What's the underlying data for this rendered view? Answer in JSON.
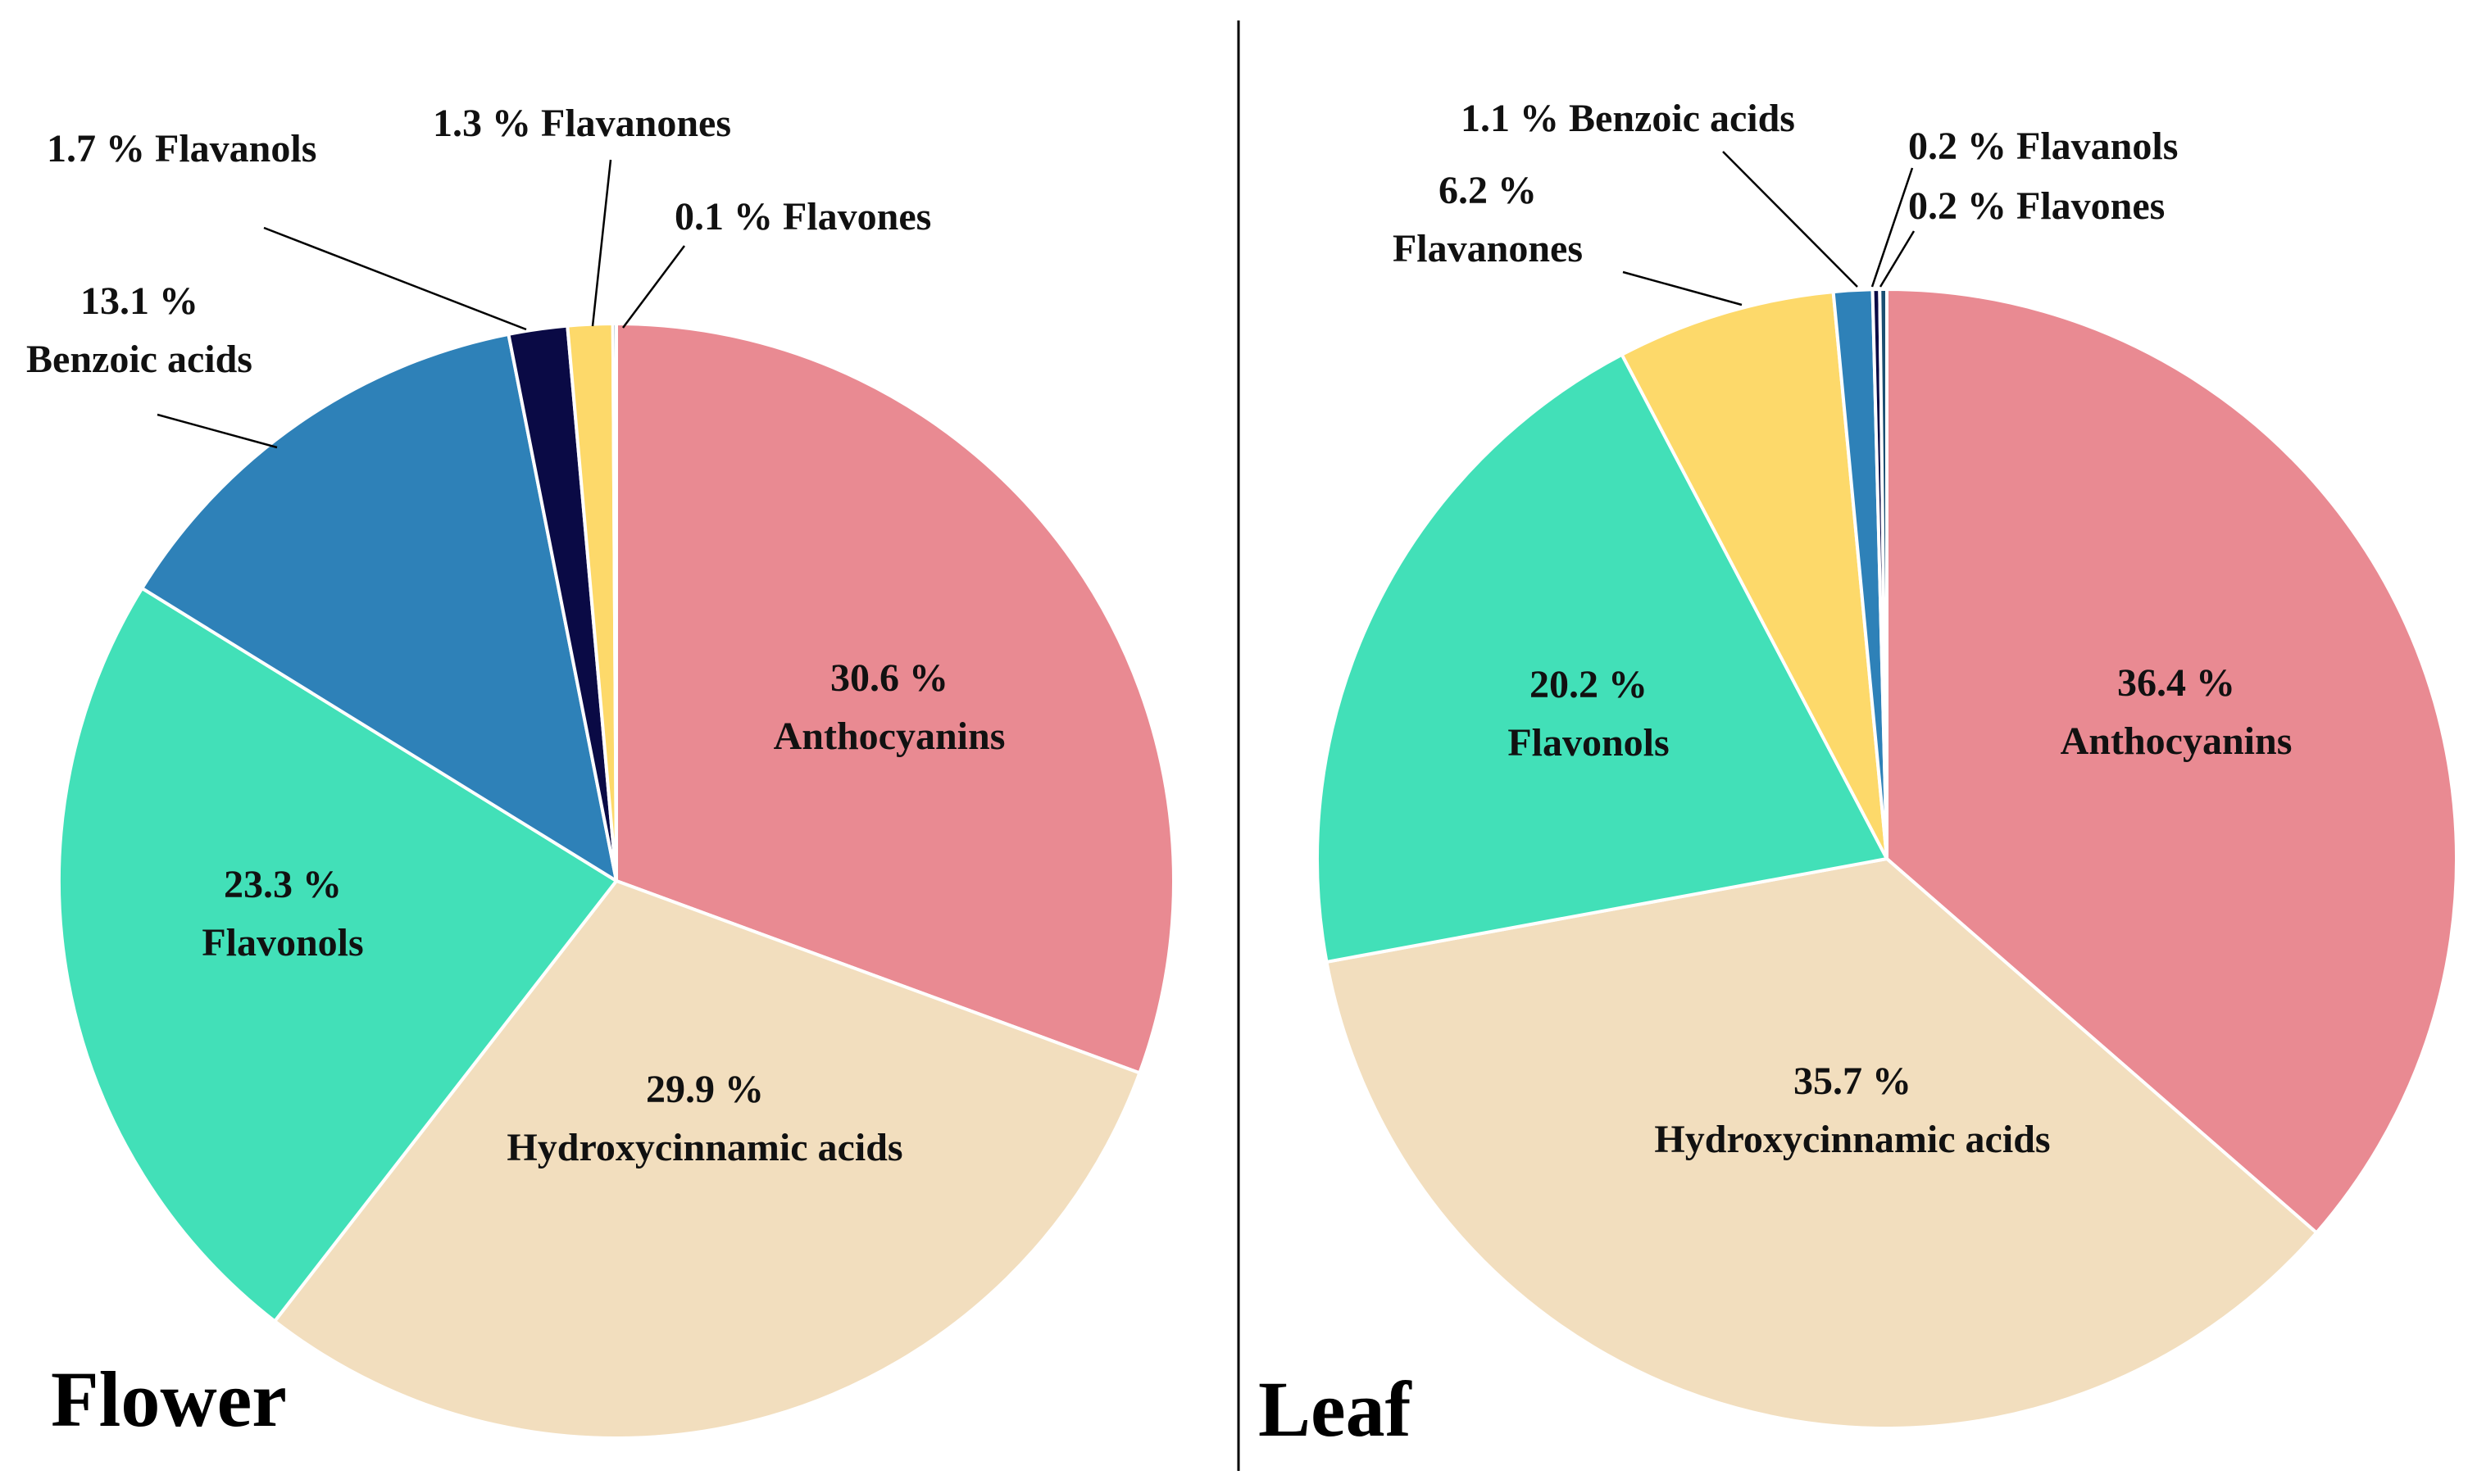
{
  "chart_data": [
    {
      "type": "pie",
      "title": "Flower",
      "slices": [
        {
          "label": "Anthocyanins",
          "value": 30.6,
          "value_text": "30.6 %",
          "color": "#E98A92"
        },
        {
          "label": "Hydroxycinnamic acids",
          "value": 29.9,
          "value_text": "29.9 %",
          "color": "#F2DEBE"
        },
        {
          "label": "Flavonols",
          "value": 23.3,
          "value_text": "23.3 %",
          "color": "#42E0B8"
        },
        {
          "label": "Benzoic acids",
          "value": 13.1,
          "value_text": "13.1 %",
          "color": "#2E81B8"
        },
        {
          "label": "Flavanols",
          "value": 1.7,
          "value_text": "1.7 %",
          "color": "#0A0A45"
        },
        {
          "label": "Flavanones",
          "value": 1.3,
          "value_text": "1.3 %",
          "color": "#FDD96A"
        },
        {
          "label": "Flavones",
          "value": 0.1,
          "value_text": "0.1 %",
          "color": "#1B4F72"
        }
      ]
    },
    {
      "type": "pie",
      "title": "Leaf",
      "slices": [
        {
          "label": "Anthocyanins",
          "value": 36.4,
          "value_text": "36.4 %",
          "color": "#E98A92"
        },
        {
          "label": "Hydroxycinnamic acids",
          "value": 35.7,
          "value_text": "35.7 %",
          "color": "#F2DEBE"
        },
        {
          "label": "Flavonols",
          "value": 20.2,
          "value_text": "20.2 %",
          "color": "#42E0B8"
        },
        {
          "label": "Flavanones",
          "value": 6.2,
          "value_text": "6.2 %",
          "color": "#FDD96A"
        },
        {
          "label": "Benzoic acids",
          "value": 1.1,
          "value_text": "1.1 %",
          "color": "#2E81B8"
        },
        {
          "label": "Flavanols",
          "value": 0.2,
          "value_text": "0.2 %",
          "color": "#0A0A45"
        },
        {
          "label": "Flavones",
          "value": 0.2,
          "value_text": "0.2 %",
          "color": "#1B4F72"
        }
      ]
    }
  ]
}
